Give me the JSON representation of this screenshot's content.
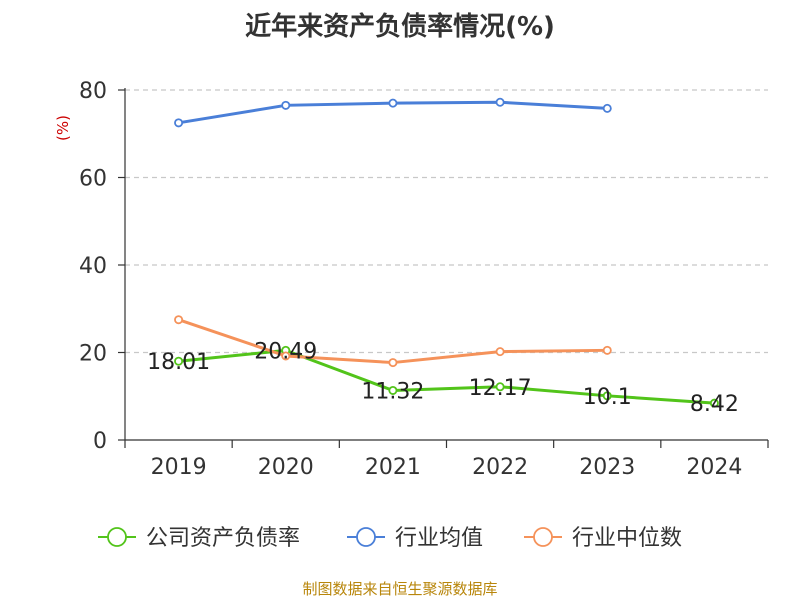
{
  "chart_data": {
    "type": "line",
    "title": "近年来资产负债率情况(%)",
    "unit_label": "(%)",
    "categories": [
      "2019",
      "2020",
      "2021",
      "2022",
      "2023",
      "2024"
    ],
    "ylim": [
      0,
      80
    ],
    "yticks": [
      0,
      20,
      40,
      60,
      80
    ],
    "grid": true,
    "legend_position": "bottom",
    "series": [
      {
        "name": "公司资产负债率",
        "color": "#52c41a",
        "values": [
          18.01,
          20.49,
          11.32,
          12.17,
          10.1,
          8.42
        ],
        "labels": [
          "18.01",
          "20.49",
          "11.32",
          "12.17",
          "10.1",
          "8.42"
        ]
      },
      {
        "name": "行业均值",
        "color": "#4a7fd8",
        "values": [
          72.5,
          76.5,
          77,
          77.2,
          75.8,
          null
        ]
      },
      {
        "name": "行业中位数",
        "color": "#f5925a",
        "values": [
          27.5,
          19.2,
          17.7,
          20.2,
          20.5,
          null
        ]
      }
    ]
  },
  "footer": {
    "source": "制图数据来自恒生聚源数据库"
  }
}
